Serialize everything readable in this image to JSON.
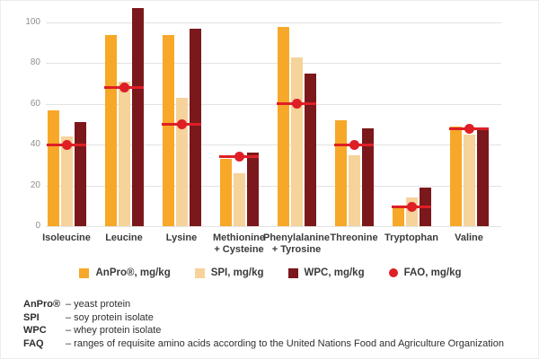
{
  "chart_data": {
    "type": "bar",
    "title": "",
    "xlabel": "",
    "ylabel": "",
    "categories": [
      "Isoleucine",
      "Leucine",
      "Lysine",
      "Methionine + Cysteine",
      "Phenylalanine + Tyrosine",
      "Threonine",
      "Tryptophan",
      "Valine"
    ],
    "series": [
      {
        "name": "AnPro®, mg/kg",
        "color": "#f7a828",
        "values": [
          57,
          94,
          94,
          33,
          98,
          52,
          9,
          49
        ]
      },
      {
        "name": "SPI, mg/kg",
        "color": "#f6d39b",
        "values": [
          44,
          71,
          63,
          26,
          83,
          35,
          14,
          45
        ]
      },
      {
        "name": "WPC, mg/kg",
        "color": "#7a181b",
        "values": [
          51,
          107,
          97,
          36,
          75,
          48,
          19,
          48
        ]
      }
    ],
    "fao_series": {
      "name": "FAO, mg/kg",
      "color": "#de1f26",
      "marker": "circle-with-line",
      "values": [
        40,
        68,
        50,
        34,
        60,
        40,
        9.5,
        48
      ]
    },
    "y_ticks": [
      0,
      20,
      40,
      60,
      80,
      100
    ],
    "ylim": [
      0,
      110
    ],
    "grid": true,
    "gridline_color": "#e2e2e2",
    "axis_label_color": "#8f8f8f",
    "legend_position": "bottom"
  },
  "footnotes": [
    {
      "term": "AnPro®",
      "definition": "– yeast protein"
    },
    {
      "term": "SPI",
      "definition": "– soy protein isolate"
    },
    {
      "term": "WPC",
      "definition": "– whey protein isolate"
    },
    {
      "term": "FAQ",
      "definition": "– ranges of requisite amino acids according to the United Nations Food and Agriculture Organization"
    }
  ]
}
